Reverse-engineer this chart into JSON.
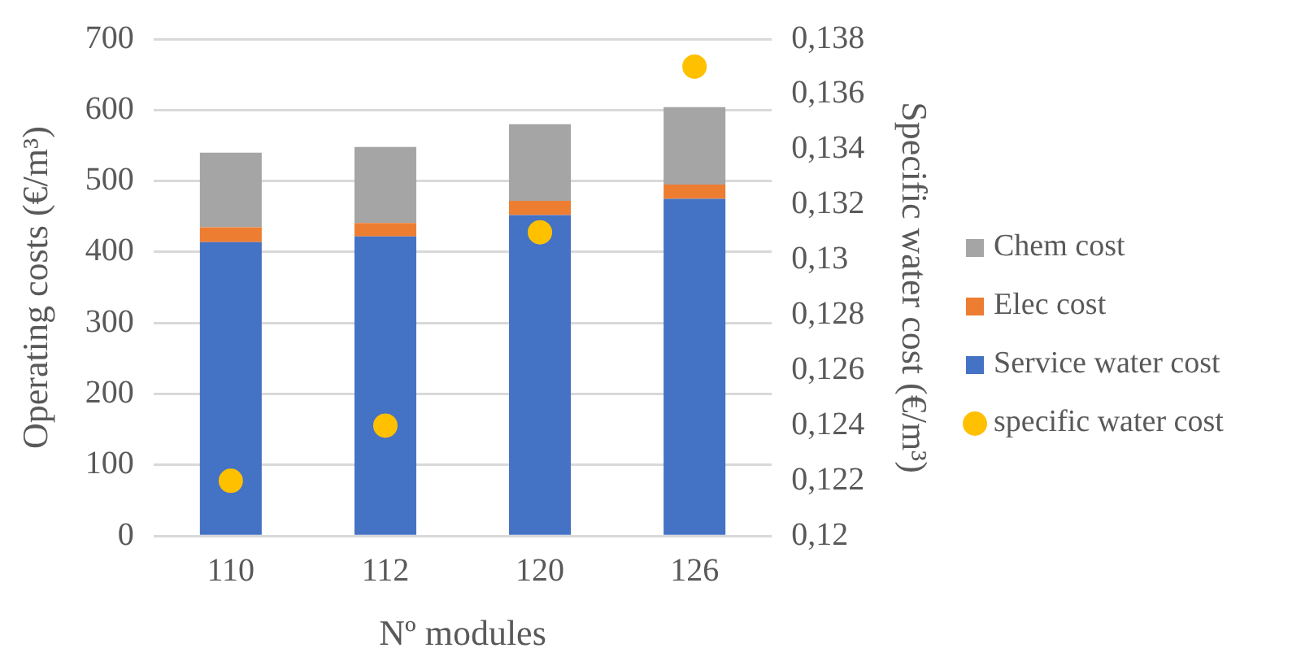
{
  "chart_data": {
    "type": "bar",
    "stacked": true,
    "xlabel": "Nº modules",
    "ylabel": "Operating costs (€/m³)",
    "y2label": "Specific water cost (€/m³)",
    "categories": [
      "110",
      "112",
      "120",
      "126"
    ],
    "series": [
      {
        "name": "Service water cost",
        "color": "#4472c4",
        "values": [
          414,
          422,
          452,
          475
        ]
      },
      {
        "name": "Elec cost",
        "color": "#ed7d31",
        "values": [
          21,
          19,
          20,
          20
        ]
      },
      {
        "name": "Chem cost",
        "color": "#a5a5a5",
        "values": [
          105,
          107,
          108,
          109
        ]
      },
      {
        "name": "specific water cost",
        "type": "scatter",
        "axis": "y2",
        "color": "#ffc000",
        "marker": "circle",
        "x": [
          "110",
          "112",
          "120",
          "126"
        ],
        "values": [
          0.122,
          0.124,
          0.131,
          0.137
        ]
      }
    ],
    "ylim": [
      0,
      700
    ],
    "yticks": [
      0,
      100,
      200,
      300,
      400,
      500,
      600,
      700
    ],
    "y2lim": [
      0.12,
      0.138
    ],
    "y2ticks": [
      {
        "value": 0.12,
        "label": "0,12"
      },
      {
        "value": 0.122,
        "label": "0,122"
      },
      {
        "value": 0.124,
        "label": "0,124"
      },
      {
        "value": 0.126,
        "label": "0,126"
      },
      {
        "value": 0.128,
        "label": "0,128"
      },
      {
        "value": 0.13,
        "label": "0,13"
      },
      {
        "value": 0.132,
        "label": "0,132"
      },
      {
        "value": 0.134,
        "label": "0,134"
      },
      {
        "value": 0.136,
        "label": "0,136"
      },
      {
        "value": 0.138,
        "label": "0,138"
      }
    ],
    "grid": "y",
    "legend": "right"
  }
}
